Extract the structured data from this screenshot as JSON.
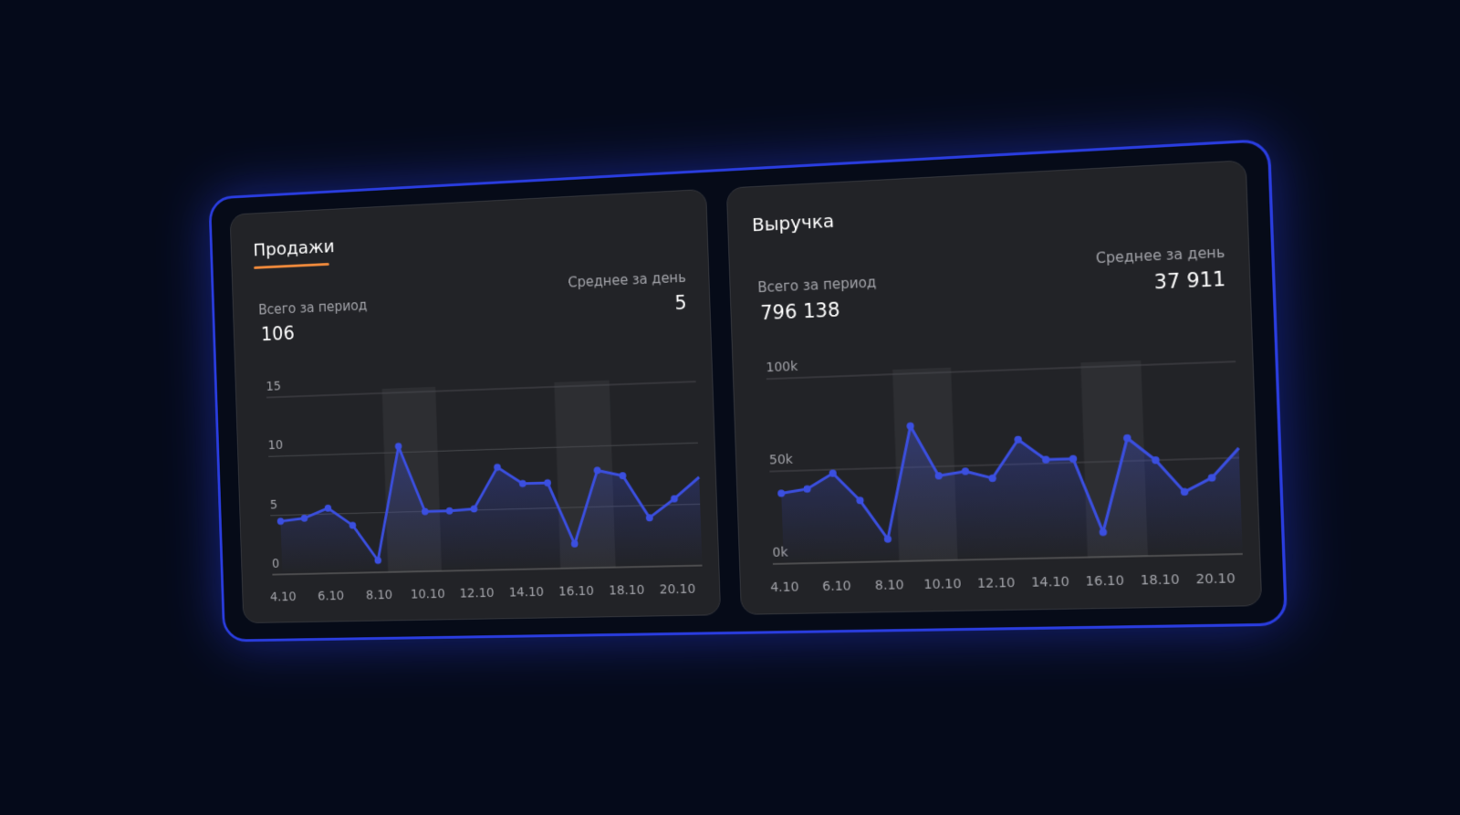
{
  "chart_data": [
    {
      "type": "line",
      "title": "Продажи",
      "total_label": "Всего за период",
      "total": "106",
      "average_label": "Среднее за день",
      "average": "5",
      "categories": [
        "4.10",
        null,
        "6.10",
        null,
        "8.10",
        null,
        "10.10",
        null,
        "12.10",
        null,
        "14.10",
        null,
        "16.10",
        null,
        "18.10",
        null,
        "20.10",
        null
      ],
      "values": [
        4.5,
        4.7,
        5.5,
        4,
        1,
        10.5,
        5,
        5,
        5.1,
        8.5,
        7.1,
        7.1,
        2,
        8,
        7.5,
        4,
        5.5,
        7.2
      ],
      "color": "#3b4fe0",
      "ylim": [
        0,
        15
      ],
      "yticks": [
        0,
        5,
        10,
        15
      ],
      "grid": true
    },
    {
      "type": "line",
      "title": "Выручка",
      "total_label": "Всего за период",
      "total": "796 138",
      "average_label": "Среднее за день",
      "average": "37 911",
      "categories": [
        "4.10",
        null,
        "6.10",
        null,
        "8.10",
        null,
        "10.10",
        null,
        "12.10",
        null,
        "14.10",
        null,
        "16.10",
        null,
        "18.10",
        null,
        "20.10",
        null
      ],
      "values": [
        38000,
        40000,
        48000,
        33000,
        12000,
        72000,
        45000,
        47000,
        43000,
        63000,
        52000,
        52000,
        13000,
        62000,
        50000,
        33000,
        40000,
        55000
      ],
      "color": "#3b4fe0",
      "ylim": [
        0,
        100000
      ],
      "yticks": [
        {
          "value": 0,
          "label": "0k"
        },
        {
          "value": 50000,
          "label": "50k"
        },
        {
          "value": 100000,
          "label": "100k"
        }
      ],
      "grid": true
    }
  ]
}
